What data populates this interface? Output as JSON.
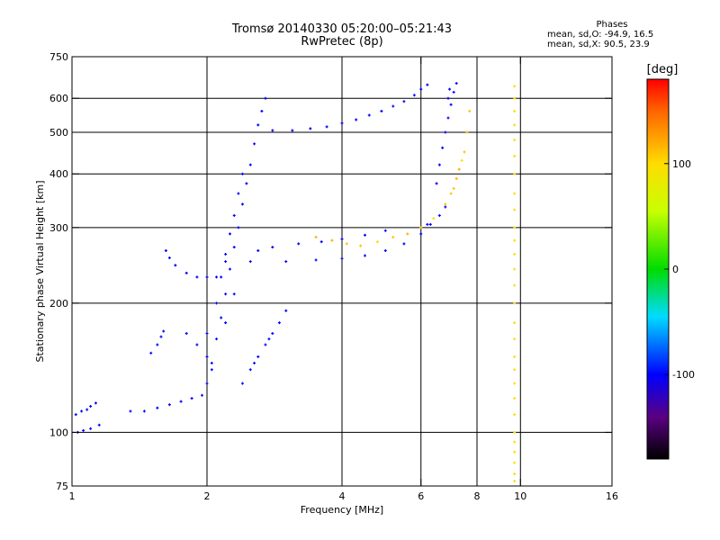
{
  "header": {
    "title": "Tromsø 20140330 05:20:00–05:21:43",
    "subtitle": "RwPretec (8p)"
  },
  "phases": {
    "heading": "Phases",
    "line1": "mean, sd,O: -94.9, 16.5",
    "line2": "mean, sd,X:  90.5, 23.9"
  },
  "colorbar": {
    "unit": "[deg]",
    "ticks": [
      "100",
      "0",
      "-100"
    ],
    "tick_values": [
      100,
      0,
      -100
    ],
    "range": [
      -180,
      180
    ]
  },
  "chart_data": {
    "type": "scatter",
    "title": "Tromsø 20140330 05:20:00–05:21:43",
    "subtitle": "RwPretec (8p)",
    "xlabel": "Frequency [MHz]",
    "ylabel": "Stationary phase Virtual Height [km]",
    "xscale": "log",
    "yscale": "log",
    "xlim": [
      1,
      16
    ],
    "ylim": [
      75,
      750
    ],
    "xticks": [
      1,
      2,
      4,
      6,
      8,
      10,
      16
    ],
    "xtick_labels": [
      "1",
      "2",
      "4",
      "6",
      "8",
      "10",
      "16"
    ],
    "yticks": [
      75,
      100,
      200,
      300,
      400,
      500,
      600,
      750
    ],
    "ytick_labels": [
      "75",
      "100",
      "200",
      "300",
      "400",
      "500",
      "600",
      "750"
    ],
    "grid": true,
    "color_by": "phase [deg]",
    "series": [
      {
        "points": [
          [
            1.02,
            110,
            -100
          ],
          [
            1.05,
            112,
            -100
          ],
          [
            1.08,
            113,
            -100
          ],
          [
            1.1,
            115,
            -100
          ],
          [
            1.13,
            117,
            -100
          ],
          [
            1.03,
            100,
            -110
          ],
          [
            1.06,
            101,
            -105
          ],
          [
            1.1,
            102,
            -100
          ],
          [
            1.15,
            104,
            -100
          ],
          [
            1.35,
            112,
            -100
          ],
          [
            1.45,
            112,
            -100
          ],
          [
            1.55,
            114,
            -100
          ],
          [
            1.65,
            116,
            -100
          ],
          [
            1.75,
            118,
            -100
          ],
          [
            1.85,
            120,
            -100
          ],
          [
            1.95,
            122,
            -100
          ],
          [
            1.5,
            153,
            -100
          ],
          [
            1.55,
            160,
            -100
          ],
          [
            1.58,
            167,
            -100
          ],
          [
            1.6,
            172,
            -100
          ],
          [
            1.8,
            170,
            -100
          ],
          [
            1.9,
            160,
            -100
          ],
          [
            2.0,
            150,
            -100
          ],
          [
            2.05,
            140,
            -100
          ],
          [
            1.62,
            265,
            -100
          ],
          [
            1.65,
            255,
            -100
          ],
          [
            1.7,
            245,
            -100
          ],
          [
            1.8,
            235,
            -100
          ],
          [
            1.9,
            230,
            -100
          ],
          [
            2.0,
            230,
            -100
          ],
          [
            2.1,
            230,
            -100
          ]
        ]
      },
      {
        "points": [
          [
            2.0,
            130,
            -100
          ],
          [
            2.05,
            145,
            -100
          ],
          [
            2.1,
            165,
            -100
          ],
          [
            2.15,
            185,
            -100
          ],
          [
            2.2,
            210,
            -100
          ],
          [
            2.25,
            240,
            -100
          ],
          [
            2.3,
            270,
            -100
          ],
          [
            2.35,
            300,
            -100
          ],
          [
            2.4,
            340,
            -100
          ],
          [
            2.45,
            380,
            -100
          ],
          [
            2.5,
            420,
            -100
          ],
          [
            2.55,
            470,
            -100
          ],
          [
            2.6,
            520,
            -100
          ],
          [
            2.65,
            560,
            -100
          ],
          [
            2.7,
            600,
            -100
          ],
          [
            2.0,
            170,
            -100
          ],
          [
            2.1,
            200,
            -100
          ],
          [
            2.2,
            260,
            -100
          ],
          [
            2.3,
            320,
            -100
          ],
          [
            2.4,
            400,
            -100
          ],
          [
            2.2,
            180,
            -100
          ],
          [
            2.3,
            210,
            -100
          ],
          [
            2.25,
            290,
            -100
          ],
          [
            2.35,
            360,
            -100
          ],
          [
            2.15,
            230,
            -100
          ]
        ]
      },
      {
        "points": [
          [
            2.5,
            140,
            -100
          ],
          [
            2.6,
            150,
            -100
          ],
          [
            2.7,
            160,
            -100
          ],
          [
            2.8,
            170,
            -100
          ],
          [
            2.9,
            180,
            -100
          ],
          [
            3.0,
            192,
            -100
          ],
          [
            2.4,
            130,
            -100
          ],
          [
            2.55,
            145,
            -100
          ],
          [
            2.75,
            165,
            -100
          ]
        ]
      },
      {
        "points": [
          [
            2.2,
            250,
            -100
          ],
          [
            2.5,
            250,
            -100
          ],
          [
            3.0,
            250,
            -100
          ],
          [
            3.5,
            252,
            -100
          ],
          [
            4.0,
            254,
            -100
          ],
          [
            4.5,
            258,
            -100
          ],
          [
            5.0,
            265,
            -100
          ],
          [
            5.5,
            275,
            -100
          ],
          [
            6.0,
            290,
            -100
          ],
          [
            6.3,
            305,
            -100
          ],
          [
            6.6,
            320,
            -100
          ],
          [
            6.8,
            335,
            -100
          ],
          [
            6.2,
            305,
            -100
          ]
        ]
      },
      {
        "points": [
          [
            2.6,
            265,
            -100
          ],
          [
            2.8,
            270,
            -100
          ],
          [
            3.2,
            275,
            -100
          ],
          [
            3.6,
            278,
            -100
          ],
          [
            4.0,
            282,
            -100
          ],
          [
            4.5,
            288,
            -100
          ],
          [
            5.0,
            295,
            -100
          ]
        ]
      },
      {
        "points": [
          [
            3.5,
            285,
            120
          ],
          [
            3.8,
            280,
            120
          ],
          [
            4.1,
            275,
            110
          ],
          [
            4.4,
            272,
            110
          ],
          [
            4.8,
            278,
            100
          ],
          [
            5.2,
            285,
            110
          ],
          [
            5.6,
            290,
            120
          ],
          [
            6.0,
            300,
            110
          ],
          [
            6.4,
            315,
            100
          ],
          [
            6.8,
            340,
            110
          ],
          [
            7.1,
            370,
            110
          ],
          [
            7.3,
            410,
            120
          ],
          [
            7.5,
            450,
            110
          ],
          [
            7.6,
            500,
            120
          ],
          [
            7.7,
            560,
            110
          ],
          [
            7.4,
            430,
            100
          ],
          [
            7.2,
            390,
            120
          ],
          [
            7.0,
            360,
            110
          ]
        ]
      },
      {
        "points": [
          [
            2.8,
            505,
            -100
          ],
          [
            3.1,
            505,
            -100
          ],
          [
            3.4,
            510,
            -100
          ],
          [
            3.7,
            515,
            -100
          ],
          [
            4.0,
            525,
            -100
          ],
          [
            4.3,
            535,
            -100
          ],
          [
            4.6,
            548,
            -100
          ],
          [
            4.9,
            560,
            -100
          ],
          [
            5.2,
            575,
            -100
          ],
          [
            5.5,
            590,
            -100
          ],
          [
            5.8,
            610,
            -100
          ],
          [
            6.0,
            630,
            -100
          ],
          [
            6.2,
            645,
            -100
          ]
        ]
      },
      {
        "points": [
          [
            6.5,
            380,
            -100
          ],
          [
            6.6,
            420,
            -100
          ],
          [
            6.7,
            460,
            -100
          ],
          [
            6.8,
            500,
            -100
          ],
          [
            6.9,
            540,
            -100
          ],
          [
            7.0,
            580,
            -100
          ],
          [
            7.1,
            620,
            -100
          ],
          [
            7.2,
            650,
            -100
          ],
          [
            6.9,
            600,
            -100
          ],
          [
            6.95,
            630,
            -100
          ]
        ]
      },
      {
        "points": [
          [
            9.7,
            77,
            100
          ],
          [
            9.7,
            80,
            100
          ],
          [
            9.7,
            85,
            100
          ],
          [
            9.7,
            90,
            100
          ],
          [
            9.7,
            95,
            100
          ],
          [
            9.7,
            100,
            100
          ],
          [
            9.7,
            110,
            100
          ],
          [
            9.7,
            120,
            100
          ],
          [
            9.7,
            130,
            100
          ],
          [
            9.7,
            140,
            100
          ],
          [
            9.7,
            150,
            100
          ],
          [
            9.7,
            165,
            100
          ],
          [
            9.7,
            180,
            100
          ],
          [
            9.7,
            200,
            100
          ],
          [
            9.7,
            220,
            100
          ],
          [
            9.7,
            240,
            100
          ],
          [
            9.7,
            260,
            100
          ],
          [
            9.7,
            280,
            100
          ],
          [
            9.7,
            300,
            100
          ],
          [
            9.7,
            330,
            100
          ],
          [
            9.7,
            360,
            100
          ],
          [
            9.7,
            400,
            100
          ],
          [
            9.7,
            440,
            100
          ],
          [
            9.7,
            480,
            100
          ],
          [
            9.7,
            520,
            100
          ],
          [
            9.7,
            560,
            100
          ],
          [
            9.7,
            600,
            100
          ],
          [
            9.7,
            640,
            100
          ]
        ]
      }
    ]
  }
}
